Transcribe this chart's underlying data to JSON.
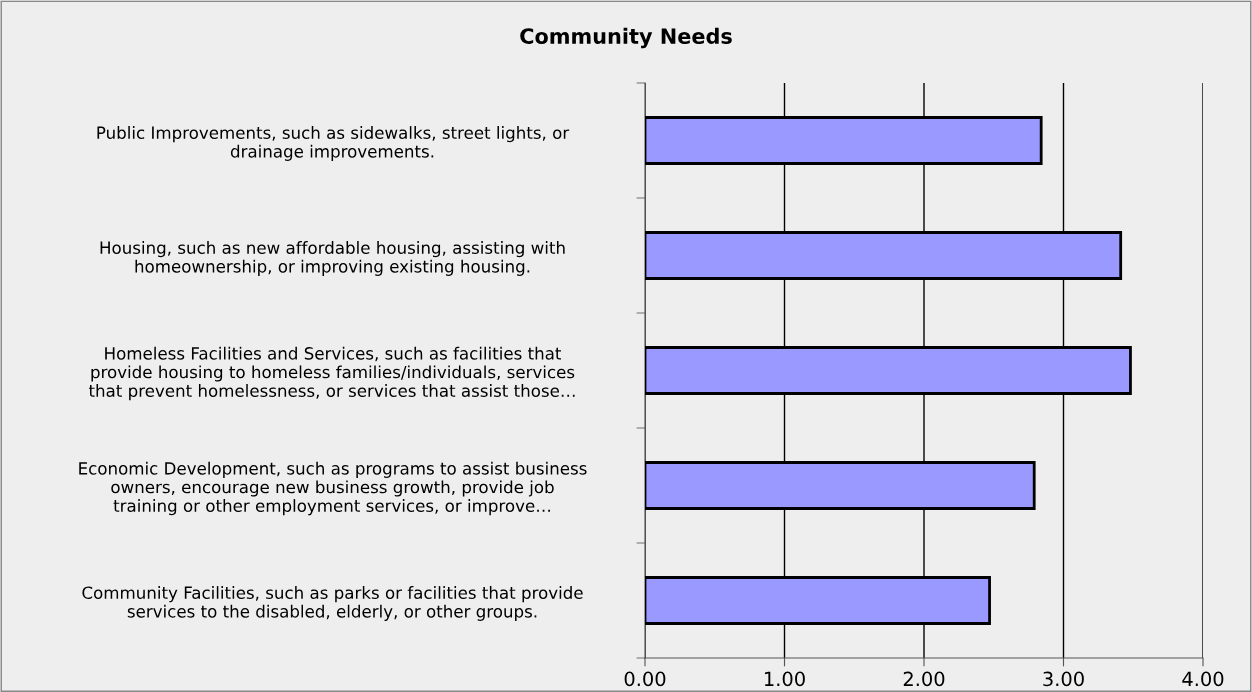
{
  "chart_data": {
    "type": "bar",
    "orientation": "horizontal",
    "title": "Community Needs",
    "categories": [
      "Public Improvements, such as sidewalks, street lights, or\ndrainage improvements.",
      "Housing, such as new affordable housing, assisting with\nhomeownership, or improving existing housing.",
      "Homeless Facilities and Services, such as facilities that\nprovide housing to homeless families/individuals, services\nthat prevent homelessness, or services that assist those…",
      "Economic Development, such as programs to assist business\nowners, encourage new business growth, provide job\ntraining or other employment services, or improve…",
      "Community Facilities, such as parks or facilities that provide\nservices to the disabled, elderly, or other groups."
    ],
    "values": [
      2.84,
      3.41,
      3.48,
      2.79,
      2.47
    ],
    "color": "#9999ff",
    "xlim": [
      0,
      4
    ],
    "xticks": [
      {
        "value": 0,
        "label": "0.00"
      },
      {
        "value": 1,
        "label": "1.00"
      },
      {
        "value": 2,
        "label": "2.00"
      },
      {
        "value": 3,
        "label": "3.00"
      },
      {
        "value": 4,
        "label": "4.00"
      }
    ],
    "grid": "x"
  }
}
